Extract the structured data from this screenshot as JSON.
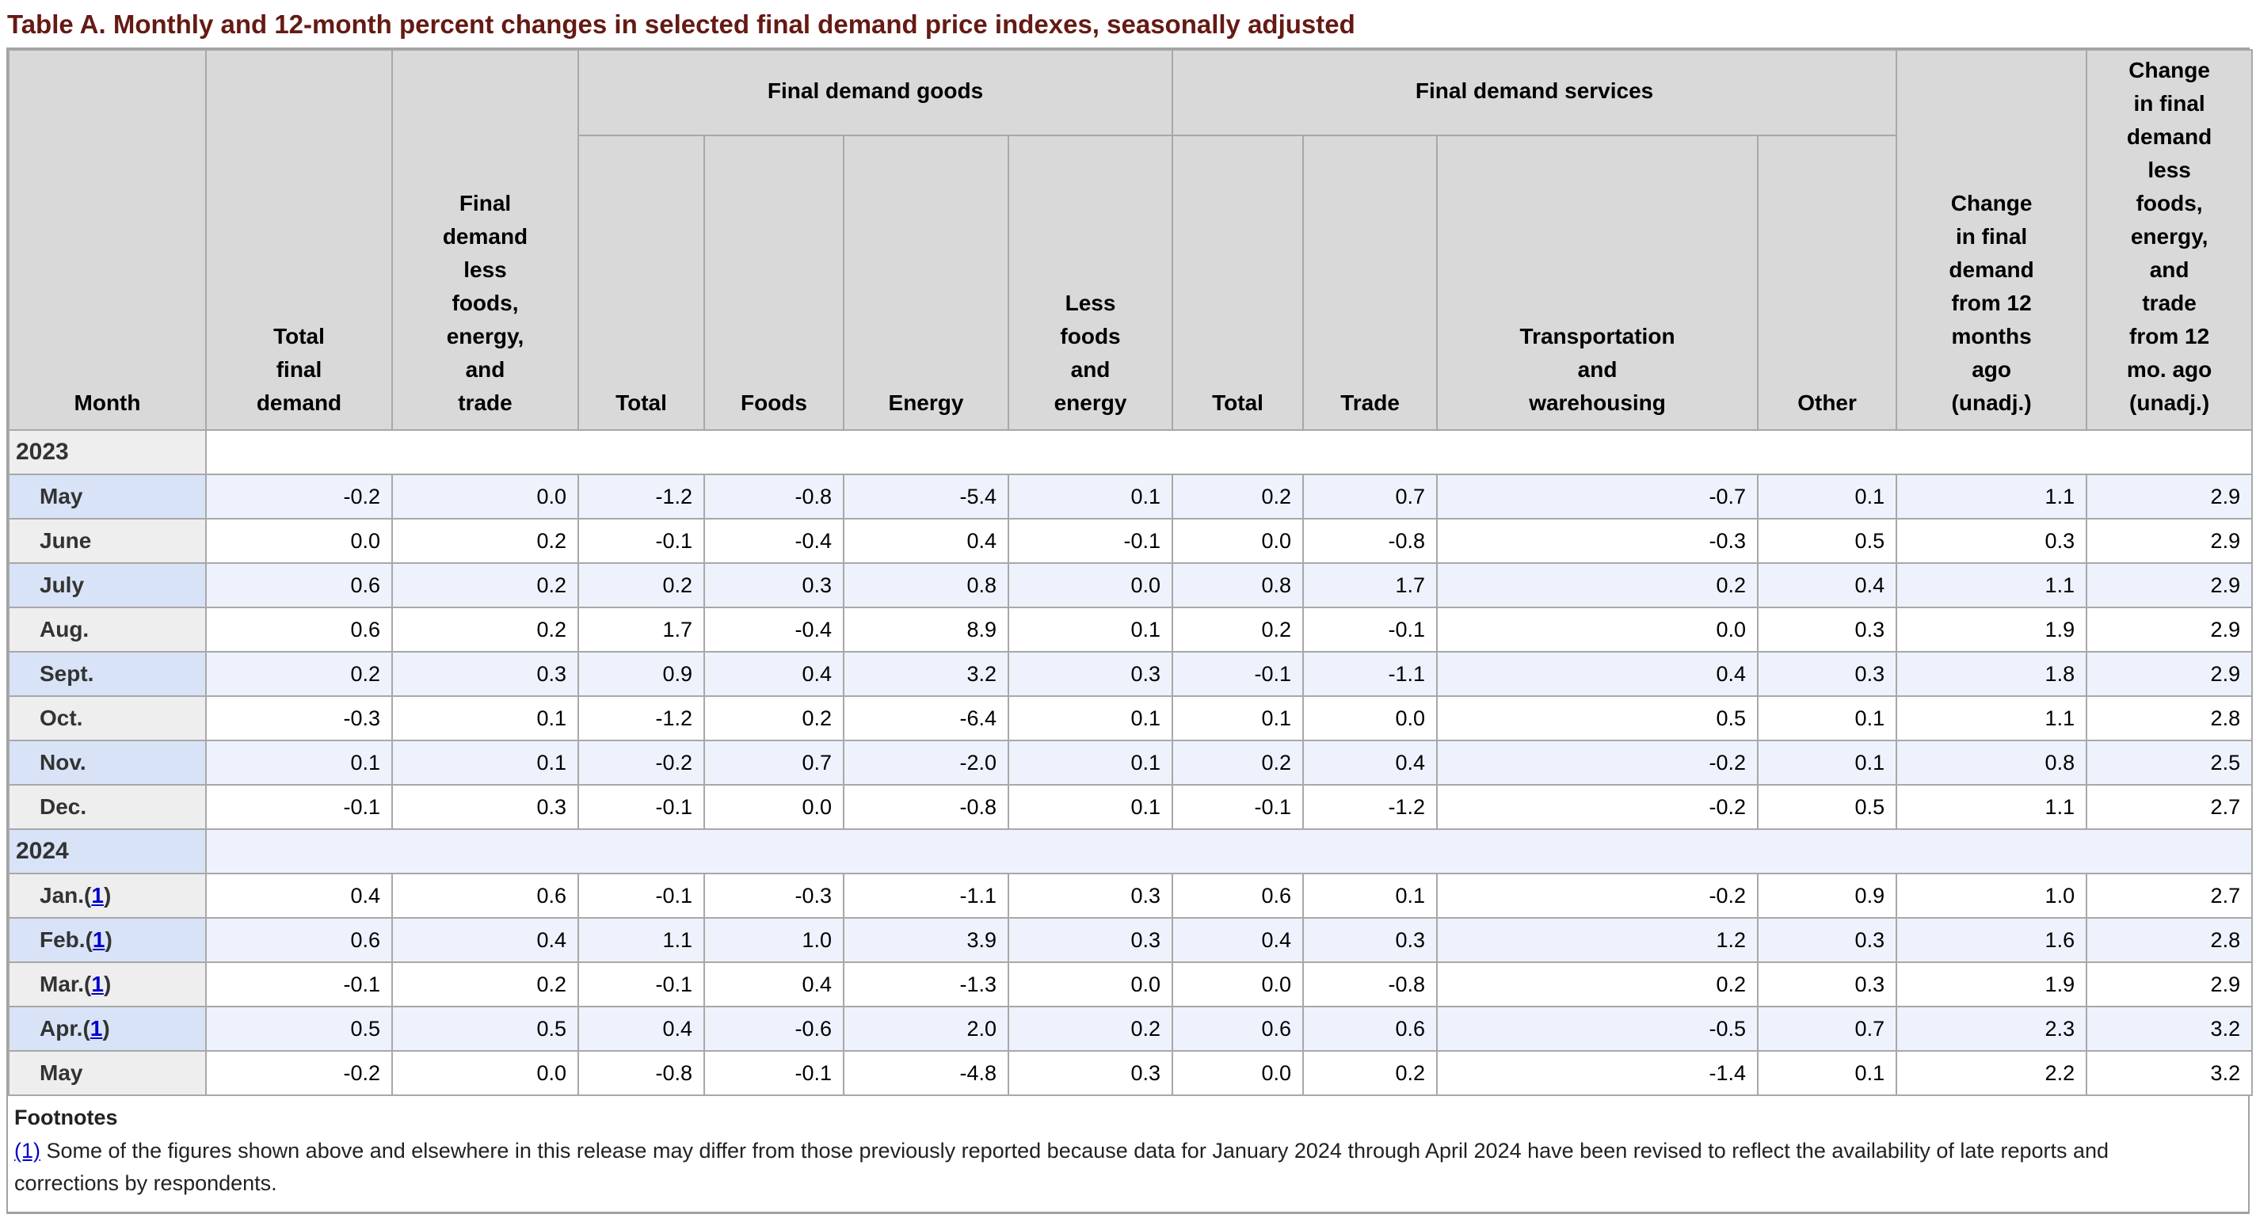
{
  "title": "Table A. Monthly and 12-month percent changes in selected final demand price indexes, seasonally adjusted",
  "colors": {
    "title_maroon": "#651a13",
    "header_gray": "#d9d9d9",
    "row_blue": "#edf2fc",
    "row_blue_label": "#d9e3f7",
    "row_gray_label": "#eeeeee",
    "border_gray": "#a8a8a8",
    "link_blue": "#0000cc"
  },
  "table": {
    "header": {
      "month": "Month",
      "total_final_demand": "Total\nfinal\ndemand",
      "less_fet": "Final\ndemand\nless\nfoods,\nenergy,\nand\ntrade",
      "goods_group": "Final demand goods",
      "services_group": "Final demand services",
      "goods_cols": [
        "Total",
        "Foods",
        "Energy",
        "Less\nfoods\nand\nenergy"
      ],
      "services_cols": [
        "Total",
        "Trade",
        "Transportation\nand\nwarehousing",
        "Other"
      ],
      "change_12mo": "Change\nin final\ndemand\nfrom 12\nmonths\nago\n(unadj.)",
      "change_less_12mo": "Change\nin final\ndemand\nless\nfoods,\nenergy,\nand\ntrade\nfrom 12\nmo. ago\n(unadj.)"
    },
    "column_ids": [
      "total-final-demand",
      "less-foods-energy-trade",
      "goods-total",
      "goods-foods",
      "goods-energy",
      "goods-less-foods-energy",
      "services-total",
      "services-trade",
      "services-transportation-warehousing",
      "services-other",
      "change-12mo",
      "change-less-12mo"
    ],
    "rows": [
      {
        "type": "year",
        "label": "2023"
      },
      {
        "type": "data",
        "id": "may-2023",
        "month": "May",
        "footnote_ref": null,
        "values": [
          "-0.2",
          "0.0",
          "-1.2",
          "-0.8",
          "-5.4",
          "0.1",
          "0.2",
          "0.7",
          "-0.7",
          "0.1",
          "1.1",
          "2.9"
        ]
      },
      {
        "type": "data",
        "id": "june-2023",
        "month": "June",
        "footnote_ref": null,
        "values": [
          "0.0",
          "0.2",
          "-0.1",
          "-0.4",
          "0.4",
          "-0.1",
          "0.0",
          "-0.8",
          "-0.3",
          "0.5",
          "0.3",
          "2.9"
        ]
      },
      {
        "type": "data",
        "id": "july-2023",
        "month": "July",
        "footnote_ref": null,
        "values": [
          "0.6",
          "0.2",
          "0.2",
          "0.3",
          "0.8",
          "0.0",
          "0.8",
          "1.7",
          "0.2",
          "0.4",
          "1.1",
          "2.9"
        ]
      },
      {
        "type": "data",
        "id": "aug-2023",
        "month": "Aug.",
        "footnote_ref": null,
        "values": [
          "0.6",
          "0.2",
          "1.7",
          "-0.4",
          "8.9",
          "0.1",
          "0.2",
          "-0.1",
          "0.0",
          "0.3",
          "1.9",
          "2.9"
        ]
      },
      {
        "type": "data",
        "id": "sept-2023",
        "month": "Sept.",
        "footnote_ref": null,
        "values": [
          "0.2",
          "0.3",
          "0.9",
          "0.4",
          "3.2",
          "0.3",
          "-0.1",
          "-1.1",
          "0.4",
          "0.3",
          "1.8",
          "2.9"
        ]
      },
      {
        "type": "data",
        "id": "oct-2023",
        "month": "Oct.",
        "footnote_ref": null,
        "values": [
          "-0.3",
          "0.1",
          "-1.2",
          "0.2",
          "-6.4",
          "0.1",
          "0.1",
          "0.0",
          "0.5",
          "0.1",
          "1.1",
          "2.8"
        ]
      },
      {
        "type": "data",
        "id": "nov-2023",
        "month": "Nov.",
        "footnote_ref": null,
        "values": [
          "0.1",
          "0.1",
          "-0.2",
          "0.7",
          "-2.0",
          "0.1",
          "0.2",
          "0.4",
          "-0.2",
          "0.1",
          "0.8",
          "2.5"
        ]
      },
      {
        "type": "data",
        "id": "dec-2023",
        "month": "Dec.",
        "footnote_ref": null,
        "values": [
          "-0.1",
          "0.3",
          "-0.1",
          "0.0",
          "-0.8",
          "0.1",
          "-0.1",
          "-1.2",
          "-0.2",
          "0.5",
          "1.1",
          "2.7"
        ]
      },
      {
        "type": "year",
        "label": "2024"
      },
      {
        "type": "data",
        "id": "jan-2024",
        "month": "Jan.",
        "footnote_ref": "1",
        "values": [
          "0.4",
          "0.6",
          "-0.1",
          "-0.3",
          "-1.1",
          "0.3",
          "0.6",
          "0.1",
          "-0.2",
          "0.9",
          "1.0",
          "2.7"
        ]
      },
      {
        "type": "data",
        "id": "feb-2024",
        "month": "Feb.",
        "footnote_ref": "1",
        "values": [
          "0.6",
          "0.4",
          "1.1",
          "1.0",
          "3.9",
          "0.3",
          "0.4",
          "0.3",
          "1.2",
          "0.3",
          "1.6",
          "2.8"
        ]
      },
      {
        "type": "data",
        "id": "mar-2024",
        "month": "Mar.",
        "footnote_ref": "1",
        "values": [
          "-0.1",
          "0.2",
          "-0.1",
          "0.4",
          "-1.3",
          "0.0",
          "0.0",
          "-0.8",
          "0.2",
          "0.3",
          "1.9",
          "2.9"
        ]
      },
      {
        "type": "data",
        "id": "apr-2024",
        "month": "Apr.",
        "footnote_ref": "1",
        "values": [
          "0.5",
          "0.5",
          "0.4",
          "-0.6",
          "2.0",
          "0.2",
          "0.6",
          "0.6",
          "-0.5",
          "0.7",
          "2.3",
          "3.2"
        ]
      },
      {
        "type": "data",
        "id": "may-2024",
        "month": "May",
        "footnote_ref": null,
        "values": [
          "-0.2",
          "0.0",
          "-0.8",
          "-0.1",
          "-4.8",
          "0.3",
          "0.0",
          "0.2",
          "-1.4",
          "0.1",
          "2.2",
          "3.2"
        ]
      }
    ]
  },
  "footnotes": {
    "heading": "Footnotes",
    "ref": "(1)",
    "text": " Some of the figures shown above and elsewhere in this release may differ from those previously reported because data for January 2024 through April 2024 have been revised to reflect the availability of late reports and\ncorrections by respondents."
  }
}
